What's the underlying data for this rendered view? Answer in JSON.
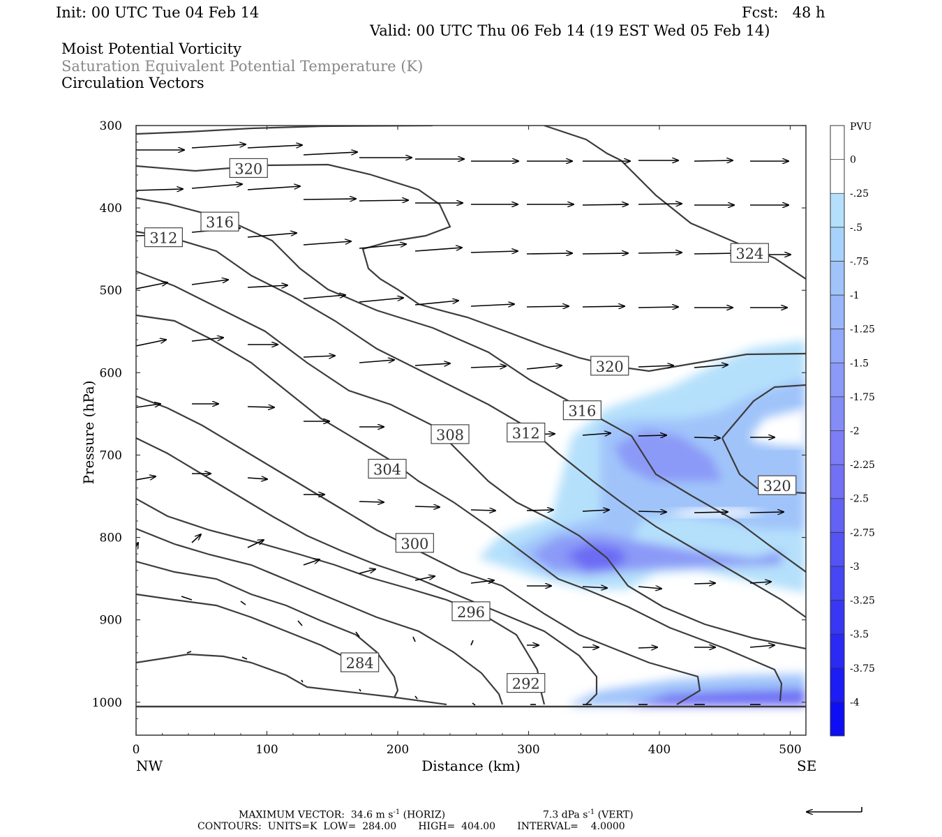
{
  "header": {
    "init": "Init: 00 UTC Tue 04 Feb 14",
    "fcst": "Fcst:   48 h",
    "valid": "Valid: 00 UTC Thu 06 Feb 14 (19 EST Wed 05 Feb 14)",
    "line1": "Moist Potential Vorticity",
    "line2": "Saturation Equivalent Potential Temperature (K)",
    "line3": "Circulation Vectors"
  },
  "footer": {
    "max_vector_label": "MAXIMUM VECTOR:",
    "max_horiz": "34.6 m s",
    "horiz_suffix": " (HORIZ)",
    "max_vert": "7.3 dPa s",
    "vert_suffix": " (VERT)",
    "exp": "-1",
    "contours": "CONTOURS:  UNITS=K  LOW=  284.00       HIGH=  404.00       INTERVAL=    4.0000"
  },
  "chart_data": {
    "type": "cross-section",
    "xlabel": "Distance (km)",
    "ylabel": "Pressure (hPa)",
    "x_left_label": "NW",
    "x_right_label": "SE",
    "xlim": [
      0,
      512
    ],
    "ylim": [
      300,
      1040
    ],
    "x_ticks": [
      0,
      100,
      200,
      300,
      400,
      500
    ],
    "y_ticks": [
      300,
      400,
      500,
      600,
      700,
      800,
      900,
      1000
    ],
    "colorbar": {
      "unit": "PVU",
      "labels": [
        "0",
        "-.25",
        "-.5",
        "-.75",
        "-1",
        "-1.25",
        "-1.5",
        "-1.75",
        "-2",
        "-2.25",
        "-2.5",
        "-2.75",
        "-3",
        "-3.25",
        "-3.5",
        "-3.75",
        "-4"
      ],
      "colors": [
        "#ffffff",
        "#ffffff",
        "#b5e0fb",
        "#a7d2fb",
        "#a0c4fa",
        "#99b6f9",
        "#92a8f8",
        "#8b9af7",
        "#848cf6",
        "#7d7ef5",
        "#7270f4",
        "#6262f4",
        "#5454f4",
        "#4646f4",
        "#3838f4",
        "#2a2af4",
        "#1c1cf4",
        "#0e0ef4"
      ]
    },
    "contour_labels": [
      {
        "text": "320",
        "x": 86,
        "p": 352
      },
      {
        "text": "316",
        "x": 64,
        "p": 417
      },
      {
        "text": "312",
        "x": 21,
        "p": 436
      },
      {
        "text": "324",
        "x": 469,
        "p": 455
      },
      {
        "text": "320",
        "x": 362,
        "p": 592
      },
      {
        "text": "316",
        "x": 341,
        "p": 646
      },
      {
        "text": "308",
        "x": 240,
        "p": 675
      },
      {
        "text": "312",
        "x": 298,
        "p": 673
      },
      {
        "text": "304",
        "x": 192,
        "p": 717
      },
      {
        "text": "320",
        "x": 490,
        "p": 737
      },
      {
        "text": "300",
        "x": 213,
        "p": 807
      },
      {
        "text": "296",
        "x": 256,
        "p": 890
      },
      {
        "text": "284",
        "x": 171,
        "p": 952
      },
      {
        "text": "292",
        "x": 298,
        "p": 977
      }
    ],
    "contours": {
      "units": "K",
      "low": 284.0,
      "high": 404.0,
      "interval": 4.0
    },
    "max_vector": {
      "horiz": "34.6 m s-1",
      "vert": "7.3 dPa s-1"
    }
  }
}
